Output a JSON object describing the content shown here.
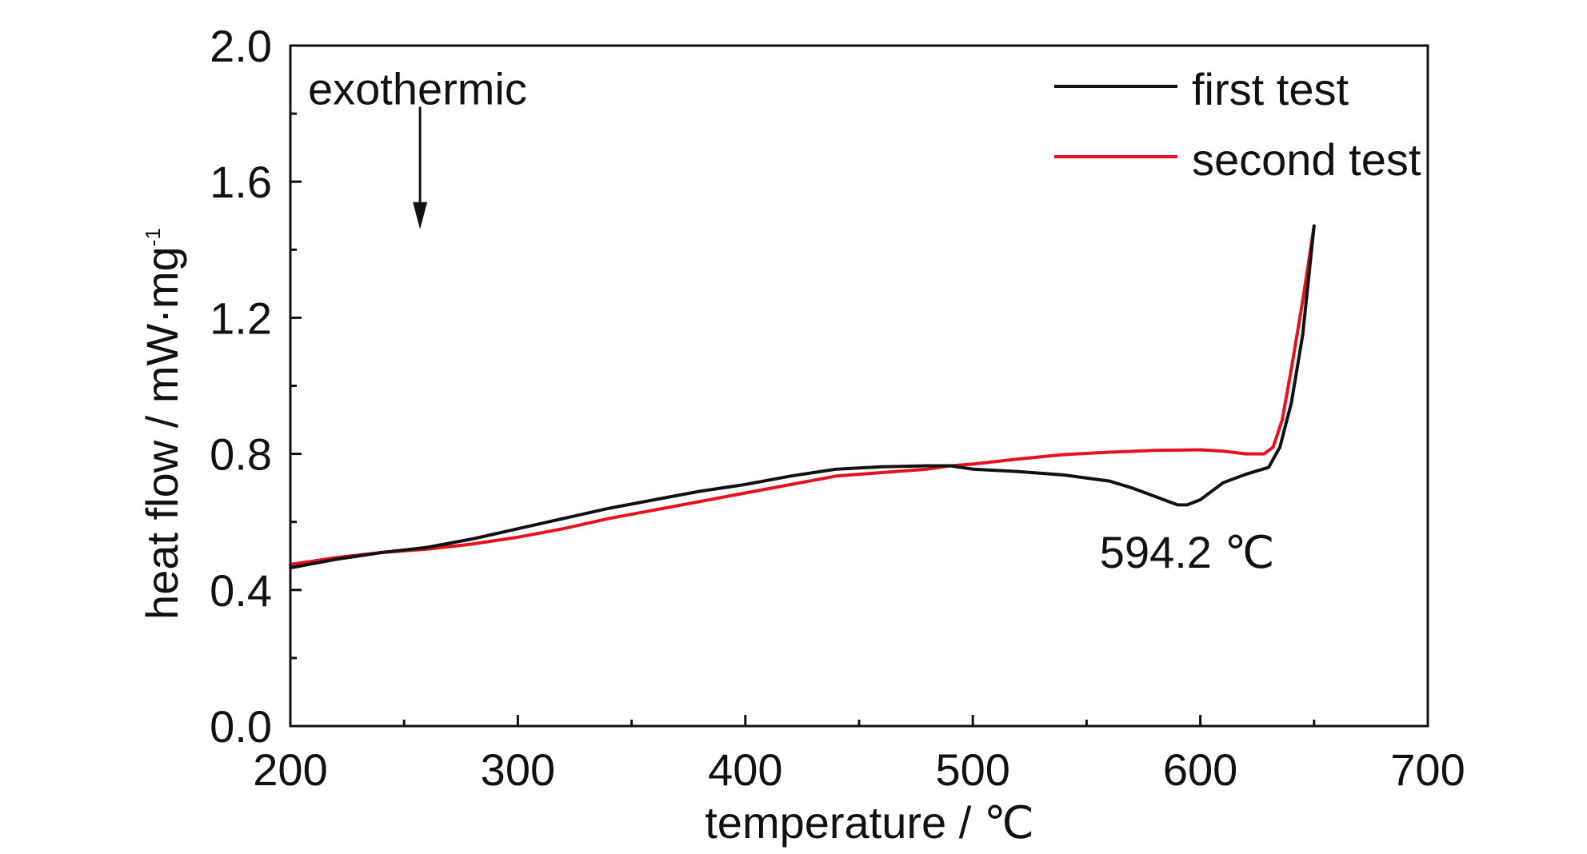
{
  "chart_data": {
    "type": "line",
    "title": "",
    "xlabel": "temperature / ℃",
    "ylabel_main": "heat flow / mW·mg",
    "ylabel_sup": "-1",
    "xlim": [
      200,
      700
    ],
    "ylim": [
      0.0,
      2.0
    ],
    "x_ticks": [
      200,
      300,
      400,
      500,
      600,
      700
    ],
    "x_tick_labels": [
      "200",
      "300",
      "400",
      "500",
      "600",
      "700"
    ],
    "y_ticks": [
      0.0,
      0.4,
      0.8,
      1.2,
      1.6,
      2.0
    ],
    "y_tick_labels": [
      "0.0",
      "0.4",
      "0.8",
      "1.2",
      "1.6",
      "2.0"
    ],
    "grid": false,
    "legend_position": "top-right",
    "series": [
      {
        "name": "first test",
        "color": "#111111",
        "x": [
          200,
          220,
          240,
          260,
          280,
          300,
          320,
          340,
          360,
          380,
          400,
          420,
          440,
          460,
          480,
          490,
          500,
          520,
          540,
          560,
          570,
          580,
          590,
          594.2,
          600,
          610,
          620,
          630,
          635,
          640,
          645,
          650
        ],
        "y": [
          0.465,
          0.49,
          0.51,
          0.525,
          0.55,
          0.58,
          0.61,
          0.64,
          0.665,
          0.69,
          0.71,
          0.735,
          0.755,
          0.762,
          0.765,
          0.765,
          0.755,
          0.748,
          0.738,
          0.72,
          0.7,
          0.675,
          0.65,
          0.65,
          0.665,
          0.715,
          0.74,
          0.76,
          0.82,
          0.95,
          1.15,
          1.47
        ]
      },
      {
        "name": "second test",
        "color": "#e8101a",
        "x": [
          200,
          220,
          240,
          260,
          280,
          300,
          320,
          340,
          360,
          380,
          400,
          420,
          440,
          460,
          480,
          490,
          500,
          520,
          540,
          560,
          580,
          600,
          610,
          620,
          628,
          632,
          636,
          640,
          645,
          650
        ],
        "y": [
          0.475,
          0.495,
          0.51,
          0.52,
          0.535,
          0.555,
          0.58,
          0.61,
          0.635,
          0.66,
          0.685,
          0.71,
          0.735,
          0.745,
          0.755,
          0.765,
          0.77,
          0.785,
          0.798,
          0.805,
          0.81,
          0.812,
          0.808,
          0.8,
          0.8,
          0.82,
          0.9,
          1.05,
          1.25,
          1.47
        ]
      }
    ],
    "annotations": [
      {
        "text": "exothermic",
        "arrow": "down",
        "x": 257,
        "y_text": 1.87,
        "y_from": 1.82,
        "y_to": 1.46
      },
      {
        "text": "594.2 ℃",
        "x": 594.2,
        "y": 0.49
      }
    ]
  }
}
